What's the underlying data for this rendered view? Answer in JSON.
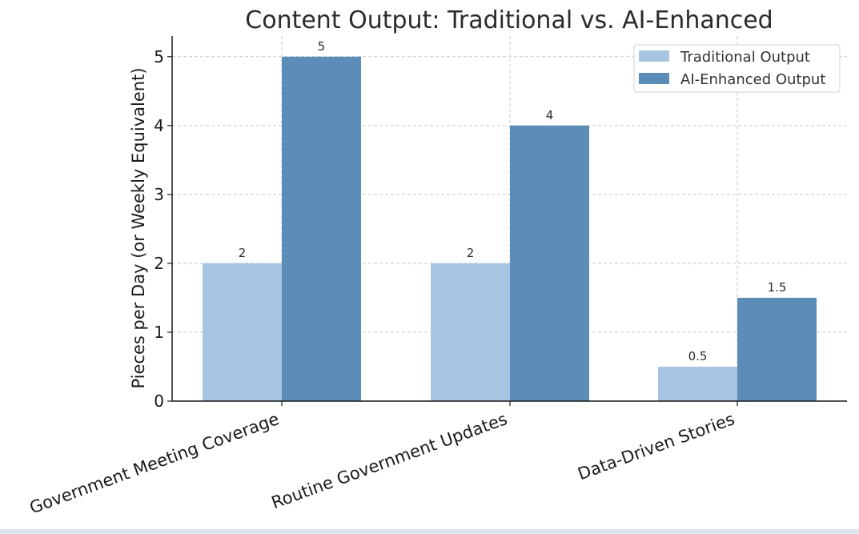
{
  "chart_data": {
    "type": "bar",
    "title": "Content Output: Traditional vs. AI-Enhanced",
    "xlabel": "",
    "ylabel": "Pieces per Day (or Weekly Equivalent)",
    "categories": [
      "Government Meeting Coverage",
      "Routine Government Updates",
      "Data-Driven Stories"
    ],
    "series": [
      {
        "name": "Traditional Output",
        "values": [
          2,
          2,
          0.5
        ],
        "color": "#a7c4e0"
      },
      {
        "name": "AI-Enhanced Output",
        "values": [
          5,
          4,
          1.5
        ],
        "color": "#5b8db8"
      }
    ],
    "ylim": [
      0,
      5.3
    ],
    "yticks": [
      0,
      1,
      2,
      3,
      4,
      5
    ],
    "grid": true,
    "legend_position": "top-right",
    "data_labels": [
      "2",
      "2",
      "0.5",
      "5",
      "4",
      "1.5"
    ]
  }
}
